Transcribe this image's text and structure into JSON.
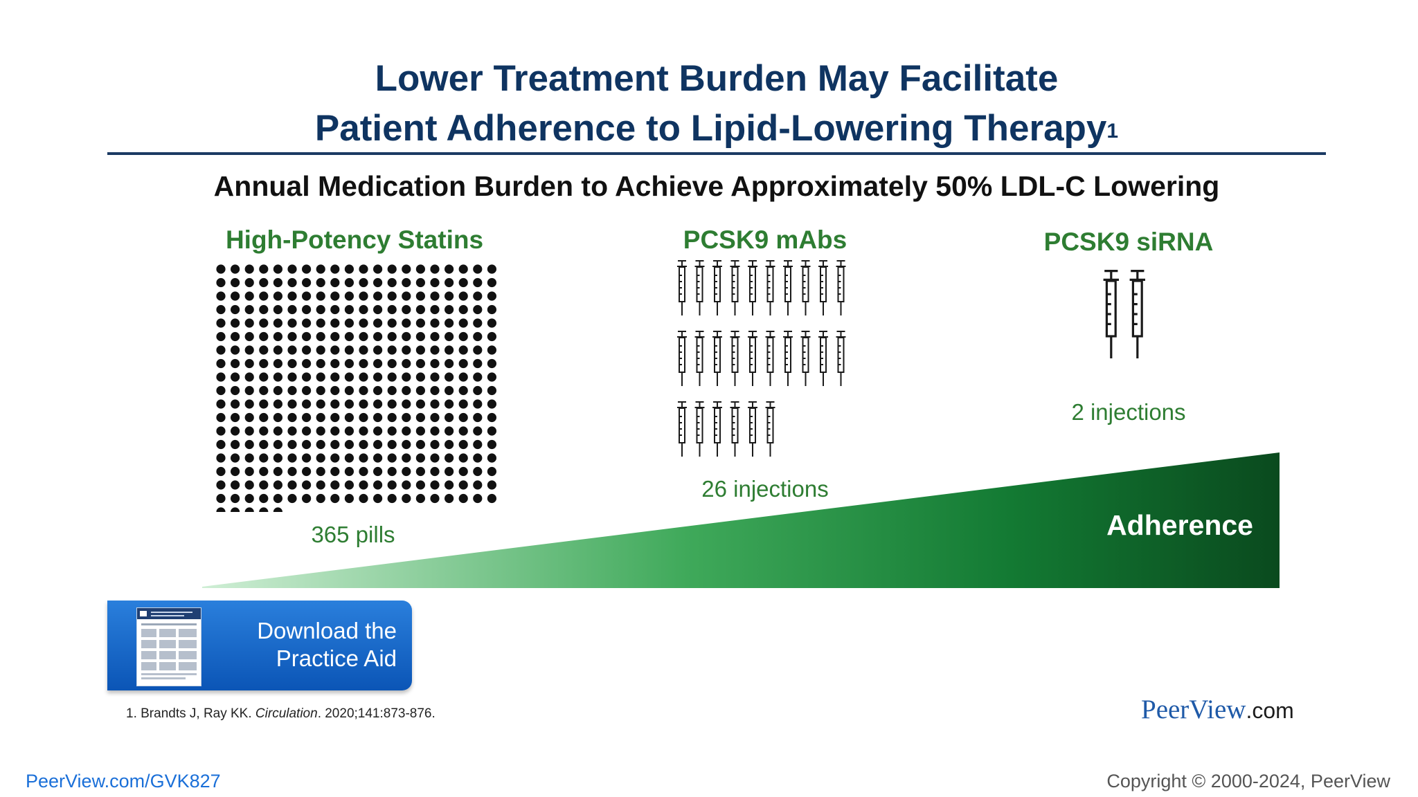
{
  "slide": {
    "title_line1": "Lower Treatment Burden May Facilitate",
    "title_line2": "Patient Adherence to Lipid-Lowering Therapy",
    "title_superscript": "1",
    "subtitle": "Annual Medication Burden to Achieve Approximately 50% LDL-C Lowering",
    "columns": [
      {
        "heading": "High-Potency Statins",
        "count_label": "365 pills",
        "count": 365,
        "icon": "pill-dot-icon"
      },
      {
        "heading": "PCSK9 mAbs",
        "count_label": "26 injections",
        "count": 26,
        "icon": "syringe-icon"
      },
      {
        "heading": "PCSK9 siRNA",
        "count_label": "2 injections",
        "count": 2,
        "icon": "syringe-icon"
      }
    ],
    "adherence_label": "Adherence",
    "colors": {
      "title": "#0f3461",
      "green": "#2e7d32",
      "wedge_light": "#c8ebcf",
      "wedge_dark": "#0a4a1e",
      "button": "#1565c0"
    }
  },
  "download_button": {
    "line1": "Download the",
    "line2": "Practice Aid",
    "thumb_icon": "document-thumbnail-icon"
  },
  "citation": {
    "prefix": "1. Brandts J, Ray KK. ",
    "journal": "Circulation",
    "suffix": ". 2020;141:873-876."
  },
  "brand": {
    "name": "PeerView",
    "suffix": ".com"
  },
  "footer": {
    "link": "PeerView.com/GVK827",
    "copyright": "Copyright © 2000-2024, PeerView"
  }
}
